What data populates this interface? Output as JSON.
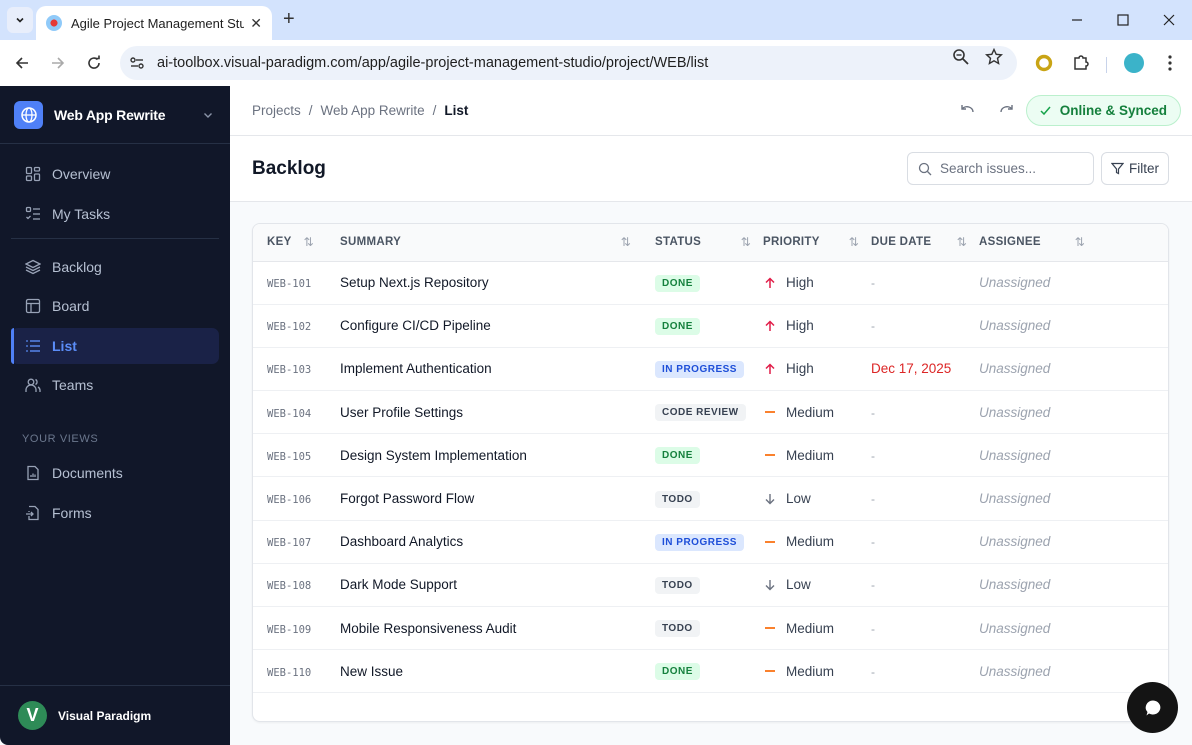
{
  "browser": {
    "tab_title": "Agile Project Management Studio",
    "url": "ai-toolbox.visual-paradigm.com/app/agile-project-management-studio/project/WEB/list"
  },
  "sidebar": {
    "project_name": "Web App Rewrite",
    "items": [
      {
        "label": "Overview",
        "icon": "grid-icon"
      },
      {
        "label": "My Tasks",
        "icon": "checklist-icon"
      },
      {
        "label": "Backlog",
        "icon": "layers-icon"
      },
      {
        "label": "Board",
        "icon": "board-icon"
      },
      {
        "label": "List",
        "icon": "list-icon",
        "active": true
      },
      {
        "label": "Teams",
        "icon": "users-icon"
      }
    ],
    "section_label": "YOUR VIEWS",
    "views": [
      {
        "label": "Documents",
        "icon": "document-icon"
      },
      {
        "label": "Forms",
        "icon": "form-icon"
      }
    ],
    "user": {
      "initial": "V",
      "name": "Visual Paradigm"
    }
  },
  "topbar": {
    "breadcrumb": [
      "Projects",
      "Web App Rewrite",
      "List"
    ],
    "sync_status": "Online & Synced"
  },
  "header": {
    "title": "Backlog",
    "search_placeholder": "Search issues...",
    "filter_label": "Filter"
  },
  "table": {
    "columns": [
      "KEY",
      "SUMMARY",
      "STATUS",
      "PRIORITY",
      "DUE DATE",
      "ASSIGNEE"
    ],
    "rows": [
      {
        "key": "WEB-101",
        "summary": "Setup Next.js Repository",
        "status": "DONE",
        "priority": "High",
        "due": "-",
        "assignee": "Unassigned"
      },
      {
        "key": "WEB-102",
        "summary": "Configure CI/CD Pipeline",
        "status": "DONE",
        "priority": "High",
        "due": "-",
        "assignee": "Unassigned"
      },
      {
        "key": "WEB-103",
        "summary": "Implement Authentication",
        "status": "IN PROGRESS",
        "priority": "High",
        "due": "Dec 17, 2025",
        "assignee": "Unassigned"
      },
      {
        "key": "WEB-104",
        "summary": "User Profile Settings",
        "status": "CODE REVIEW",
        "priority": "Medium",
        "due": "-",
        "assignee": "Unassigned"
      },
      {
        "key": "WEB-105",
        "summary": "Design System Implementation",
        "status": "DONE",
        "priority": "Medium",
        "due": "-",
        "assignee": "Unassigned"
      },
      {
        "key": "WEB-106",
        "summary": "Forgot Password Flow",
        "status": "TODO",
        "priority": "Low",
        "due": "-",
        "assignee": "Unassigned"
      },
      {
        "key": "WEB-107",
        "summary": "Dashboard Analytics",
        "status": "IN PROGRESS",
        "priority": "Medium",
        "due": "-",
        "assignee": "Unassigned"
      },
      {
        "key": "WEB-108",
        "summary": "Dark Mode Support",
        "status": "TODO",
        "priority": "Low",
        "due": "-",
        "assignee": "Unassigned"
      },
      {
        "key": "WEB-109",
        "summary": "Mobile Responsiveness Audit",
        "status": "TODO",
        "priority": "Medium",
        "due": "-",
        "assignee": "Unassigned"
      },
      {
        "key": "WEB-110",
        "summary": "New Issue",
        "status": "DONE",
        "priority": "Medium",
        "due": "-",
        "assignee": "Unassigned"
      }
    ]
  },
  "colors": {
    "accent": "#4f80f7",
    "sidebar_bg": "#111729",
    "done": "#15803d",
    "in_progress": "#1d4ed8",
    "high": "#e11d48",
    "medium": "#f97316",
    "overdue": "#dc2626"
  }
}
